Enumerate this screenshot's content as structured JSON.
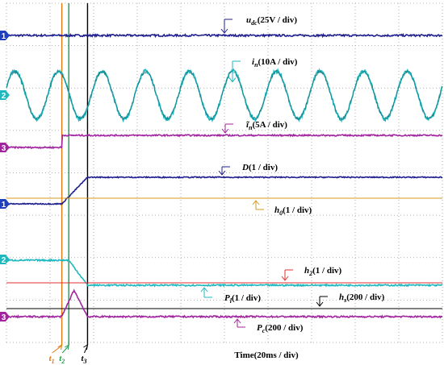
{
  "chart_data": {
    "type": "line",
    "time_axis_label": "Time(20ms / div)",
    "grid": "dotted",
    "time_divisions": 10,
    "vertical_divisions": 8,
    "colors": {
      "navy": "#1f1f8f",
      "cyan": "#1fb8c0",
      "magenta": "#a0259f",
      "orange": "#e07a10",
      "green": "#1d9a48",
      "red": "#e03030",
      "black": "#000000",
      "gold": "#d49a20"
    },
    "channel_markers": [
      {
        "label": "1",
        "color": "#1f3fbf",
        "row": 0
      },
      {
        "label": "2",
        "color": "#1fb8c0",
        "row": 1
      },
      {
        "label": "3",
        "color": "#a0259f",
        "row": 2
      },
      {
        "label": "1",
        "color": "#1f3fbf",
        "row": 3
      },
      {
        "label": "2",
        "color": "#1fb8c0",
        "row": 4
      },
      {
        "label": "3",
        "color": "#a0259f",
        "row": 5
      }
    ],
    "events": [
      {
        "name": "t1",
        "label": "t",
        "sub": "1",
        "time_div": 1.27,
        "color": "#e07a10"
      },
      {
        "name": "t2",
        "label": "t",
        "sub": "2",
        "time_div": 1.43,
        "color": "#1d9a48"
      },
      {
        "name": "t3",
        "label": "t",
        "sub": "3",
        "time_div": 1.86,
        "color": "#000000"
      }
    ],
    "series": [
      {
        "name": "u_dc",
        "label_main": "u",
        "label_sub": "dc",
        "label_rest": "(25V / div)",
        "color": "#1f1f8f",
        "kind": "dc",
        "level_div": 0.0,
        "noise": 0.03
      },
      {
        "name": "i_n",
        "label_main": "i",
        "label_sub": "n",
        "label_rest": "(10A / div)",
        "color": "#1fb8c0",
        "kind": "sine",
        "level_div": 0.0,
        "amplitude_div": 0.75,
        "cycles_per_div": 1.0,
        "noise": 0.05
      },
      {
        "name": "i_n_tilde",
        "label_main": "ĩ",
        "label_sub": "n",
        "label_rest": "(5A / div)",
        "color": "#a0259f",
        "kind": "step",
        "before_div": 0.0,
        "after_div": 0.5,
        "step_at_div": 1.27,
        "noise": 0.03
      },
      {
        "name": "D",
        "label_main": "D",
        "label_sub": "",
        "label_rest": "(1 / div)",
        "color": "#1f1f8f",
        "kind": "ramp",
        "before_div": 0.0,
        "after_div": 1.0,
        "ramp_start_div": 1.27,
        "ramp_end_div": 1.86,
        "noise": 0.02
      },
      {
        "name": "h_0",
        "label_main": "h",
        "label_sub": "0",
        "label_rest": "(1 / div)",
        "color": "#d49a20",
        "kind": "flat",
        "level_div": 0.0,
        "noise": 0.0
      },
      {
        "name": "P_l",
        "label_main": "P",
        "label_sub": "l",
        "label_rest": "(1 / div)",
        "color": "#1fb8c0",
        "kind": "ramp",
        "before_div": 1.0,
        "after_div": 0.0,
        "ramp_start_div": 1.43,
        "ramp_end_div": 1.86,
        "noise": 0.03
      },
      {
        "name": "h_2",
        "label_main": "h",
        "label_sub": "2",
        "label_rest": "(1 / div)",
        "color": "#e03030",
        "kind": "flat",
        "level_div": 0.0,
        "noise": 0.0
      },
      {
        "name": "h_s",
        "label_main": "h",
        "label_sub": "s",
        "label_rest": "(200 / div)",
        "color": "#000000",
        "kind": "flat",
        "level_div": 0.0,
        "noise": 0.0
      },
      {
        "name": "P_c",
        "label_main": "P",
        "label_sub": "c",
        "label_rest": "(200 / div)",
        "color": "#a0259f",
        "kind": "triangle",
        "level_div": 0.0,
        "peak_div": 1.0,
        "start_div": 1.27,
        "peak_at_div": 1.55,
        "end_div": 1.86,
        "noise": 0.03
      }
    ]
  }
}
